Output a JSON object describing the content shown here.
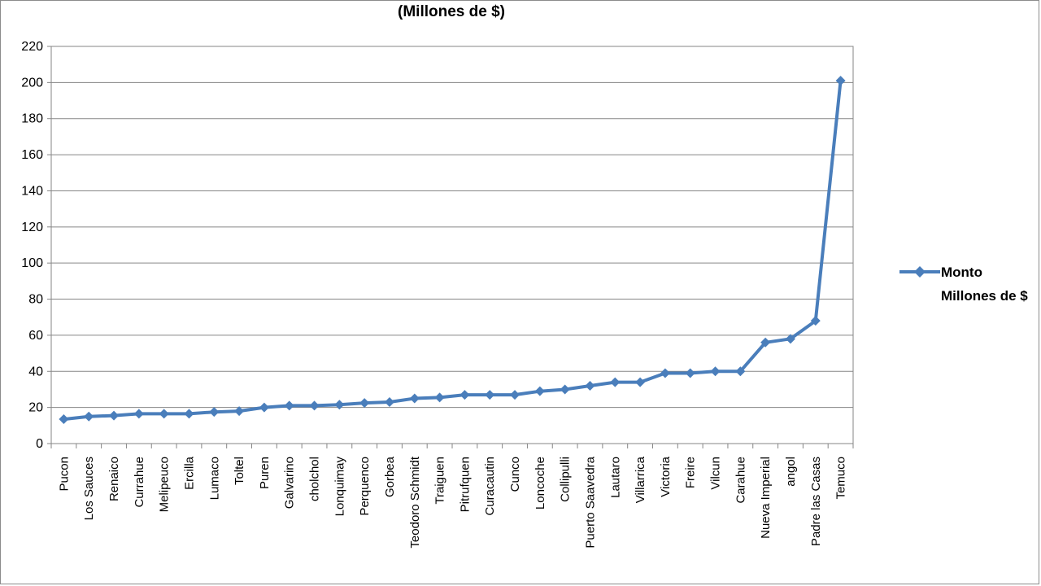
{
  "chart_data": {
    "type": "line",
    "title": "(Millones de $)",
    "xlabel": "",
    "ylabel": "",
    "ylim": [
      0,
      220
    ],
    "yticks": [
      "0",
      "20",
      "40",
      "60",
      "80",
      "100",
      "120",
      "140",
      "160",
      "180",
      "200",
      "220"
    ],
    "grid": true,
    "legend_position": "right",
    "categories": [
      "Pucon",
      "Los Sauces",
      "Renaico",
      "Currahue",
      "Melipeuco",
      "Ercilla",
      "Lumaco",
      "Toltel",
      "Puren",
      "Galvarino",
      "cholchol",
      "Lonquimay",
      "Perquenco",
      "Gorbea",
      "Teodoro Schmidt",
      "Traiguen",
      "Pitrufquen",
      "Curacautin",
      "Cunco",
      "Loncoche",
      "Collipulli",
      "Puerto Saavedra",
      "Lautaro",
      "Villarrica",
      "Victoria",
      "Freire",
      "Vilcun",
      "Carahue",
      "Nueva Imperial",
      "angol",
      "Padre las Casas",
      "Temuco"
    ],
    "series": [
      {
        "name": "Monto Millones de $",
        "color": "#4a7ebb",
        "values": [
          13.5,
          15,
          15.5,
          16.5,
          16.5,
          16.5,
          17.5,
          18,
          20,
          21,
          21,
          21.5,
          22.5,
          23,
          25,
          25.5,
          27,
          27,
          27,
          29,
          30,
          32,
          34,
          34,
          39,
          39,
          40,
          40,
          56,
          58,
          68,
          201
        ]
      }
    ]
  }
}
